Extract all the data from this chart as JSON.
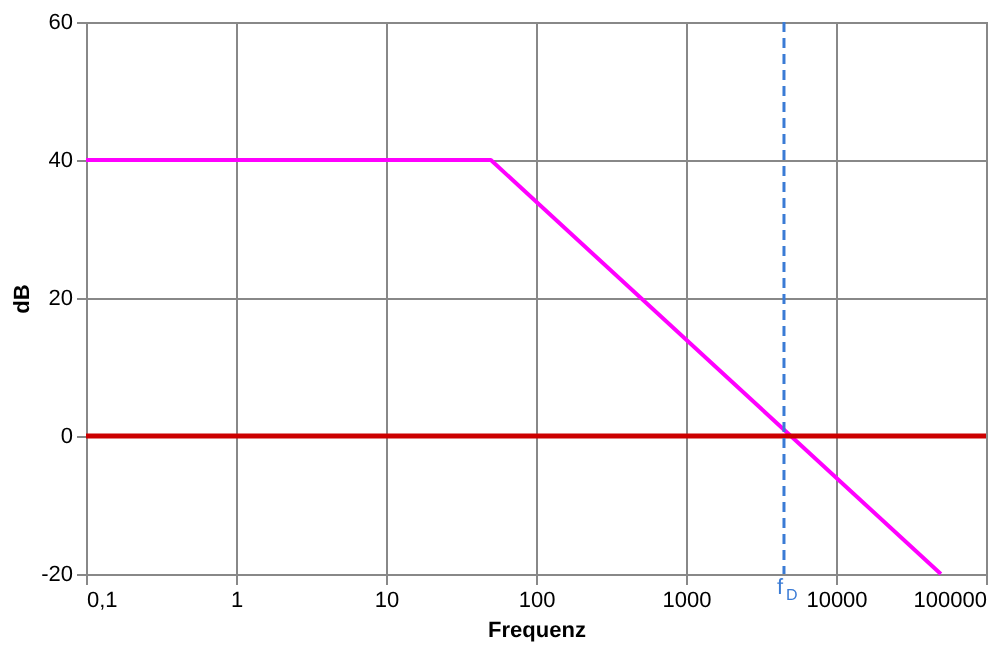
{
  "chart_data": {
    "type": "line",
    "xlabel": "Frequenz",
    "ylabel": "dB",
    "x": [
      0.1,
      50,
      50000
    ],
    "series": [
      {
        "color": "#ff00ff",
        "values": [
          40,
          40,
          -20
        ]
      }
    ],
    "log": "x",
    "xlim": [
      0.1,
      100000
    ],
    "ylim": [
      -20,
      60
    ],
    "xticks": [
      {
        "value": 0.1,
        "label": "0,1"
      },
      1,
      10,
      100,
      1000,
      10000,
      100000
    ],
    "yticks": [
      -20,
      0,
      20,
      40,
      60
    ],
    "grid": true,
    "line_style": "solid",
    "marker": "none",
    "ref_lines": [
      {
        "axis": "y",
        "value": 0,
        "color": "#cc0000",
        "line_style": "solid"
      },
      {
        "axis": "x",
        "value": 4500,
        "label": "f$_{D}$",
        "color": "#3a7bd5",
        "line_style": "dashed"
      }
    ]
  }
}
